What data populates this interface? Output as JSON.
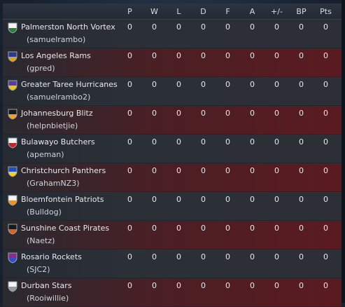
{
  "headers": [
    "P",
    "W",
    "L",
    "D",
    "F",
    "A",
    "+/-",
    "BP",
    "Pts"
  ],
  "rows": [
    {
      "team": "Palmerston North Vortex",
      "manager": "(samuelrambo)",
      "stats": [
        "0",
        "0",
        "0",
        "0",
        "0",
        "0",
        "0",
        "0",
        "0"
      ],
      "crest_top": "#f4f4f4",
      "crest_bottom": "#2e7d3a",
      "style": "dark"
    },
    {
      "team": "Los Angeles Rams",
      "manager": "(gpred)",
      "stats": [
        "0",
        "0",
        "0",
        "0",
        "0",
        "0",
        "0",
        "0",
        "0"
      ],
      "crest_top": "#2a3a8c",
      "crest_bottom": "#e0a020",
      "style": "red"
    },
    {
      "team": "Greater Taree Hurricanes",
      "manager": "(samuelrambo2)",
      "stats": [
        "0",
        "0",
        "0",
        "0",
        "0",
        "0",
        "0",
        "0",
        "0"
      ],
      "crest_top": "#5a3aa0",
      "crest_bottom": "#e8c030",
      "style": "dark"
    },
    {
      "team": "Johannesburg Blitz",
      "manager": "(helpnbietjie)",
      "stats": [
        "0",
        "0",
        "0",
        "0",
        "0",
        "0",
        "0",
        "0",
        "0"
      ],
      "crest_top": "#1a1a1a",
      "crest_bottom": "#f0a030",
      "style": "red"
    },
    {
      "team": "Bulawayo Butchers",
      "manager": "(apeman)",
      "stats": [
        "0",
        "0",
        "0",
        "0",
        "0",
        "0",
        "0",
        "0",
        "0"
      ],
      "crest_top": "#f4f4f4",
      "crest_bottom": "#c02828",
      "style": "dark"
    },
    {
      "team": "Christchurch Panthers",
      "manager": "(GrahamNZ3)",
      "stats": [
        "0",
        "0",
        "0",
        "0",
        "0",
        "0",
        "0",
        "0",
        "0"
      ],
      "crest_top": "#2050c0",
      "crest_bottom": "#f0d020",
      "style": "red"
    },
    {
      "team": "Bloemfontein Patriots",
      "manager": "(Bulldog)",
      "stats": [
        "0",
        "0",
        "0",
        "0",
        "0",
        "0",
        "0",
        "0",
        "0"
      ],
      "crest_top": "#f4f4f4",
      "crest_bottom": "#f09020",
      "style": "dark"
    },
    {
      "team": "Sunshine Coast Pirates",
      "manager": "(Naetz)",
      "stats": [
        "0",
        "0",
        "0",
        "0",
        "0",
        "0",
        "0",
        "0",
        "0"
      ],
      "crest_top": "#1a1a1a",
      "crest_bottom": "#e06020",
      "style": "red"
    },
    {
      "team": "Rosario Rockets",
      "manager": "(SJC2)",
      "stats": [
        "0",
        "0",
        "0",
        "0",
        "0",
        "0",
        "0",
        "0",
        "0"
      ],
      "crest_top": "#8a2a8c",
      "crest_bottom": "#3050c0",
      "style": "dark"
    },
    {
      "team": "Durban Stars",
      "manager": "(Rooiwillie)",
      "stats": [
        "0",
        "0",
        "0",
        "0",
        "0",
        "0",
        "0",
        "0",
        "0"
      ],
      "crest_top": "#f4f4f4",
      "crest_bottom": "#9a9a9a",
      "style": "red"
    }
  ]
}
